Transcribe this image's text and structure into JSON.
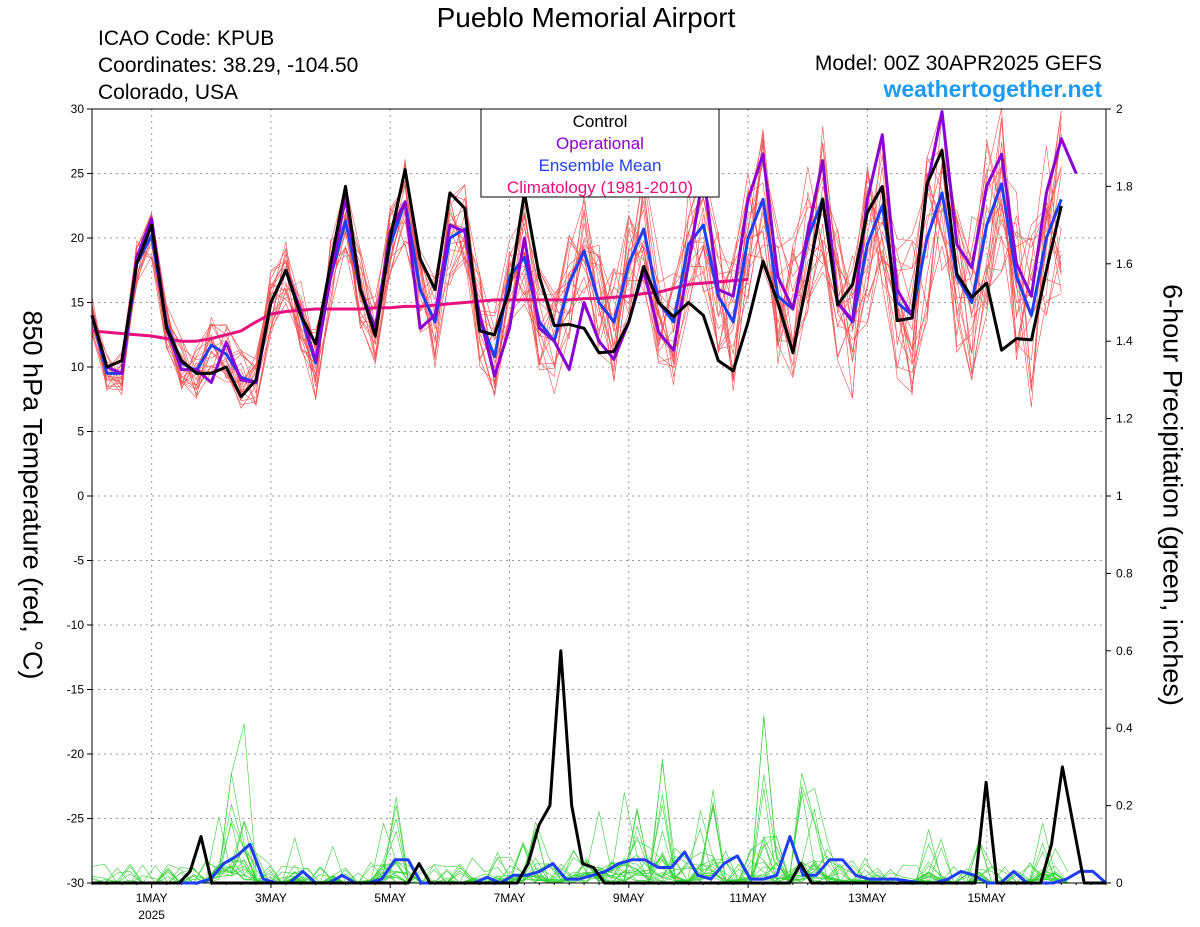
{
  "header": {
    "title": "Pueblo Memorial Airport",
    "icao": "ICAO Code: KPUB",
    "coordinates": "Coordinates: 38.29, -104.50",
    "region": "Colorado, USA",
    "model": "Model: 00Z 30APR2025 GEFS",
    "site": "weathertogether.net"
  },
  "chart_data": {
    "type": "line",
    "xlabel": "",
    "ylabel": "850 hPa Temperature (red, °C)",
    "ylabel2": "6-hour Precipitation (green, inches)",
    "xlim": [
      -4,
      64
    ],
    "ylim": [
      -30,
      30
    ],
    "ylim2": [
      0,
      2
    ],
    "yticks": [
      30,
      25,
      20,
      15,
      10,
      5,
      0,
      -5,
      -10,
      -15,
      -20,
      -25,
      -30
    ],
    "yticks2": [
      "2",
      "1.8",
      "1.6",
      "1.4",
      "1.2",
      "1",
      "0.8",
      "0.6",
      "0.4",
      "0.2",
      "0"
    ],
    "xticks": [
      {
        "t": 0,
        "label": "1MAY",
        "sub": "2025"
      },
      {
        "t": 8,
        "label": "3MAY",
        "sub": ""
      },
      {
        "t": 16,
        "label": "5MAY",
        "sub": ""
      },
      {
        "t": 24,
        "label": "7MAY",
        "sub": ""
      },
      {
        "t": 32,
        "label": "9MAY",
        "sub": ""
      },
      {
        "t": 40,
        "label": "11MAY",
        "sub": ""
      },
      {
        "t": 48,
        "label": "13MAY",
        "sub": ""
      },
      {
        "t": 56,
        "label": "15MAY",
        "sub": ""
      }
    ],
    "grid": true,
    "legend_position": "top-center",
    "legend": [
      {
        "name": "Control",
        "color": "#000000"
      },
      {
        "name": "Operational",
        "color": "#8a00d4"
      },
      {
        "name": "Ensemble Mean",
        "color": "#1f3ff5"
      },
      {
        "name": "Climatology (1981-2010)",
        "color": "#e8107d"
      }
    ],
    "colors": {
      "members_temp": "#f05050",
      "members_precip": "#35d035"
    },
    "x_unit": "6-hour steps from 1MAY 00Z",
    "x_start": -4,
    "series": [
      {
        "name": "Control",
        "color": "#000000",
        "axis": "temp",
        "width": 3,
        "values": [
          14,
          10,
          10.5,
          18,
          21,
          13,
          10.5,
          9.5,
          9.5,
          10,
          7.7,
          9,
          15,
          17.5,
          14,
          11.8,
          18,
          24,
          16,
          12.4,
          20,
          25.3,
          18.4,
          16,
          23.5,
          22.3,
          12.8,
          12.5,
          16,
          23.5,
          17,
          13.2,
          13.3,
          13,
          11.1,
          11.2,
          13.5,
          17.8,
          15,
          13.9,
          15,
          14,
          10.5,
          9.7,
          13.5,
          18.2,
          15,
          11.1,
          17,
          23,
          14.8,
          16.4,
          22,
          24,
          13.6,
          13.8,
          24.2,
          26.8,
          17.2,
          15.4,
          16.5,
          11.3,
          12.2,
          12.1,
          17.5,
          22.5
        ]
      },
      {
        "name": "Operational",
        "color": "#8a00d4",
        "axis": "temp",
        "width": 3,
        "values": [
          14,
          10,
          9.5,
          18.5,
          21.5,
          13,
          9.8,
          9.8,
          8.8,
          11.9,
          9,
          8.8,
          15,
          17.5,
          14.3,
          10.5,
          17,
          23.2,
          16,
          13,
          20.5,
          22.8,
          13,
          14,
          21,
          20.5,
          14,
          9.3,
          13,
          20,
          13,
          12,
          9.8,
          15,
          12,
          10.6,
          13.5,
          17.5,
          12.7,
          11.3,
          18,
          25,
          16,
          15.5,
          23,
          26.5,
          17,
          14.5,
          20.5,
          26,
          15,
          13.6,
          23,
          28,
          16,
          14,
          24,
          29.8,
          19.5,
          17.7,
          24,
          26.5,
          18,
          15.5,
          23.5,
          27.7,
          25
        ]
      },
      {
        "name": "Ensemble Mean",
        "color": "#1f3ff5",
        "axis": "temp",
        "width": 3,
        "values": [
          14,
          9.5,
          9.5,
          18,
          20.2,
          13.3,
          10.3,
          9.7,
          11.7,
          11,
          9.2,
          8.8,
          15,
          17.5,
          14,
          10.3,
          17,
          21.3,
          16,
          13,
          19.5,
          22.8,
          16,
          13.5,
          20,
          20.7,
          13.8,
          10.8,
          17,
          18.5,
          13.5,
          12,
          16.5,
          19,
          15,
          13.5,
          18,
          20.7,
          15,
          13.5,
          19.5,
          21,
          15.5,
          13.5,
          20,
          23,
          15.5,
          14.5,
          20,
          23,
          15,
          13.5,
          19.5,
          22.5,
          15,
          14,
          20,
          23.5,
          17,
          15,
          21,
          24.2,
          17,
          14,
          20,
          23
        ]
      },
      {
        "name": "Climatology (1981-2010)",
        "color": "#e8107d",
        "axis": "temp",
        "width": 3,
        "values": [
          12.8,
          12.7,
          12.6,
          12.5,
          12.4,
          12.2,
          12.0,
          12.0,
          12.2,
          12.5,
          12.8,
          13.5,
          14.1,
          14.3,
          14.4,
          14.5,
          14.5,
          14.5,
          14.5,
          14.6,
          14.6,
          14.7,
          14.7,
          14.8,
          14.9,
          15.0,
          15.1,
          15.2,
          15.2,
          15.2,
          15.2,
          15.2,
          15.2,
          15.3,
          15.3,
          15.4,
          15.5,
          15.7,
          15.8,
          16.1,
          16.4,
          16.5,
          16.6,
          16.7,
          16.8
        ]
      },
      {
        "name": "Control precipitation",
        "color": "#000000",
        "axis": "precip",
        "width": 3,
        "values": [
          0,
          0,
          0,
          0,
          0,
          0,
          0,
          0,
          0,
          0.03,
          0.12,
          0,
          0,
          0,
          0,
          0,
          0,
          0,
          0,
          0,
          0,
          0,
          0,
          0,
          0,
          0,
          0,
          0,
          0,
          0,
          0.05,
          0,
          0,
          0,
          0,
          0,
          0,
          0,
          0,
          0,
          0.05,
          0.15,
          0.2,
          0.6,
          0.2,
          0.05,
          0.04,
          0,
          0,
          0,
          0,
          0,
          0,
          0,
          0,
          0,
          0,
          0,
          0,
          0,
          0,
          0,
          0,
          0,
          0,
          0.05,
          0,
          0,
          0,
          0,
          0,
          0,
          0,
          0,
          0,
          0,
          0,
          0,
          0,
          0,
          0,
          0,
          0.26,
          0,
          0,
          0,
          0,
          0,
          0.1,
          0.3,
          0.15,
          0,
          0,
          0
        ]
      },
      {
        "name": "Ensemble Mean precipitation",
        "color": "#1f3ff5",
        "axis": "precip",
        "width": 3,
        "values": [
          0,
          0,
          0,
          0,
          0,
          0,
          0,
          0,
          0,
          0.01,
          0.05,
          0.07,
          0.1,
          0.01,
          0,
          0,
          0.03,
          0,
          0,
          0.02,
          0,
          0,
          0.01,
          0.06,
          0.06,
          0,
          0,
          0,
          0,
          0,
          0.015,
          0,
          0.02,
          0.02,
          0.03,
          0.05,
          0.01,
          0.01,
          0.02,
          0.03,
          0.05,
          0.06,
          0.06,
          0.04,
          0.04,
          0.08,
          0.02,
          0.01,
          0.05,
          0.07,
          0.01,
          0.01,
          0.02,
          0.12,
          0.02,
          0.02,
          0.06,
          0.06,
          0.02,
          0.01,
          0.01,
          0.01,
          0.005,
          0,
          0,
          0.01,
          0.03,
          0.02,
          0,
          0,
          0.03,
          0,
          0,
          0,
          0.01,
          0.03,
          0.03,
          0
        ]
      }
    ]
  }
}
